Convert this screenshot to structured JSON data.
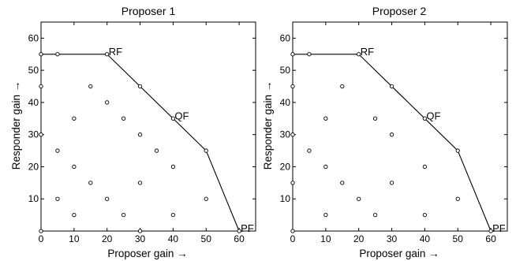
{
  "chart_data": [
    {
      "type": "scatter",
      "title": "Proposer 1",
      "xlabel": "Proposer gain →",
      "ylabel": "Responder gain →",
      "xlim": [
        0,
        65
      ],
      "ylim": [
        0,
        65
      ],
      "xticks": [
        0,
        10,
        20,
        30,
        40,
        50,
        60
      ],
      "yticks": [
        10,
        20,
        30,
        40,
        50,
        60
      ],
      "grid": false,
      "series": [
        {
          "marker": "circle",
          "points": [
            [
              0,
              0
            ],
            [
              0,
              30
            ],
            [
              0,
              45
            ],
            [
              0,
              55
            ],
            [
              5,
              10
            ],
            [
              5,
              25
            ],
            [
              5,
              55
            ],
            [
              10,
              5
            ],
            [
              10,
              20
            ],
            [
              10,
              35
            ],
            [
              15,
              15
            ],
            [
              15,
              45
            ],
            [
              20,
              10
            ],
            [
              20,
              40
            ],
            [
              20,
              55
            ],
            [
              25,
              5
            ],
            [
              25,
              35
            ],
            [
              30,
              0
            ],
            [
              30,
              15
            ],
            [
              30,
              30
            ],
            [
              30,
              45
            ],
            [
              35,
              25
            ],
            [
              40,
              5
            ],
            [
              40,
              20
            ],
            [
              40,
              35
            ],
            [
              50,
              10
            ],
            [
              50,
              25
            ],
            [
              60,
              0
            ]
          ]
        },
        {
          "line": "frontier",
          "points": [
            [
              0,
              55
            ],
            [
              20,
              55
            ],
            [
              50,
              25
            ],
            [
              60,
              0
            ]
          ]
        }
      ],
      "annotations": [
        {
          "text": "RF",
          "x": 20,
          "y": 55
        },
        {
          "text": "QF",
          "x": 40,
          "y": 35
        },
        {
          "text": "PF",
          "x": 60,
          "y": 0
        }
      ]
    },
    {
      "type": "scatter",
      "title": "Proposer 2",
      "xlabel": "Proposer gain →",
      "ylabel": "Responder gain →",
      "xlim": [
        0,
        65
      ],
      "ylim": [
        0,
        65
      ],
      "xticks": [
        0,
        10,
        20,
        30,
        40,
        50,
        60
      ],
      "yticks": [
        10,
        20,
        30,
        40,
        50,
        60
      ],
      "grid": false,
      "series": [
        {
          "marker": "circle",
          "points": [
            [
              0,
              0
            ],
            [
              0,
              15
            ],
            [
              0,
              30
            ],
            [
              0,
              45
            ],
            [
              0,
              55
            ],
            [
              5,
              25
            ],
            [
              5,
              55
            ],
            [
              10,
              5
            ],
            [
              10,
              20
            ],
            [
              10,
              35
            ],
            [
              15,
              15
            ],
            [
              15,
              45
            ],
            [
              20,
              10
            ],
            [
              20,
              55
            ],
            [
              25,
              5
            ],
            [
              25,
              35
            ],
            [
              30,
              15
            ],
            [
              30,
              30
            ],
            [
              30,
              45
            ],
            [
              40,
              5
            ],
            [
              40,
              20
            ],
            [
              40,
              35
            ],
            [
              50,
              10
            ],
            [
              50,
              25
            ],
            [
              60,
              0
            ]
          ]
        },
        {
          "line": "frontier",
          "points": [
            [
              0,
              55
            ],
            [
              20,
              55
            ],
            [
              50,
              25
            ],
            [
              60,
              0
            ]
          ]
        }
      ],
      "annotations": [
        {
          "text": "RF",
          "x": 20,
          "y": 55
        },
        {
          "text": "QF",
          "x": 40,
          "y": 35
        },
        {
          "text": "PF",
          "x": 60,
          "y": 0
        }
      ]
    }
  ]
}
